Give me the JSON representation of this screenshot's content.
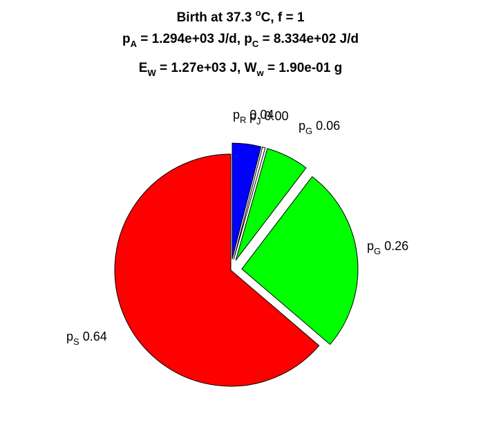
{
  "chart_data": {
    "type": "pie",
    "title": {
      "line1": {
        "pre": "Birth at 37.3 ",
        "sup": "o",
        "post": "C, f = 1"
      },
      "line2": {
        "pA_sym": "p",
        "pA_sub": "A",
        "pA_val": " = 1.294e+03 J/d, ",
        "pC_sym": "p",
        "pC_sub": "C",
        "pC_val": " = 8.334e+02 J/d"
      },
      "line3": {
        "EW_sym": "E",
        "EW_sub": "W",
        "EW_val": " = 1.27e+03 J, ",
        "Ww_sym": "W",
        "Ww_sub": "w",
        "Ww_val": " = 1.90e-01 g"
      }
    },
    "slices": [
      {
        "sym": "p",
        "sub": "R",
        "value_label": "0.04",
        "value": 0.04,
        "color": "#0000ff"
      },
      {
        "sym": "p",
        "sub": "J",
        "value_label": "0.00",
        "value": 0.004,
        "color": "#ffffff"
      },
      {
        "sym": "p",
        "sub": "G",
        "value_label": "0.06",
        "value": 0.06,
        "color": "#00ff00"
      },
      {
        "sym": "p",
        "sub": "G",
        "value_label": "0.26",
        "value": 0.26,
        "color": "#00ff00"
      },
      {
        "sym": "p",
        "sub": "S",
        "value_label": "0.64",
        "value": 0.64,
        "color": "#ff0000"
      }
    ],
    "exploded": [
      true,
      true,
      true,
      true,
      false
    ],
    "start_angle_deg": 0,
    "direction": "clockwise"
  }
}
